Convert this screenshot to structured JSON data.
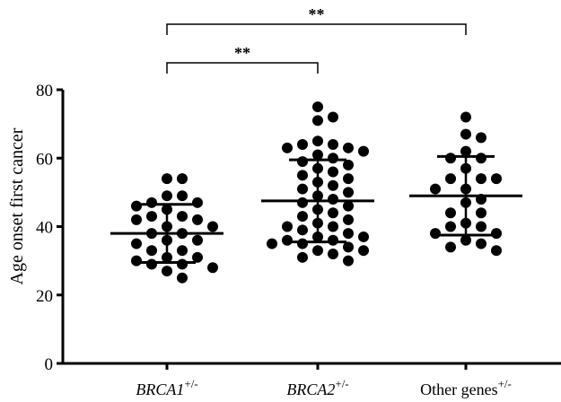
{
  "chart_data": {
    "type": "scatter",
    "title": "",
    "xlabel": "",
    "ylabel": "Age onset first cancer",
    "ylim": [
      0,
      80
    ],
    "yticks": [
      "0",
      "20",
      "40",
      "60",
      "80"
    ],
    "grid": false,
    "legend": "none",
    "point_color": "#000000",
    "categories": [
      {
        "base": "BRCA1",
        "sup": "+/-",
        "italic": true
      },
      {
        "base": "BRCA2",
        "sup": "+/-",
        "italic": true
      },
      {
        "base": "Other genes",
        "sup": "+/-",
        "italic": false
      }
    ],
    "groups": [
      {
        "mean": 38,
        "sd_low": 29.5,
        "sd_high": 46.5,
        "values": [
          54,
          54,
          49,
          49,
          47,
          47,
          46,
          45,
          43,
          43,
          42,
          42,
          40,
          40,
          38,
          38,
          36,
          36,
          35,
          33,
          33,
          31,
          31,
          30,
          29,
          29,
          28,
          27,
          25
        ]
      },
      {
        "mean": 47.5,
        "sd_low": 35.5,
        "sd_high": 59.5,
        "values": [
          75,
          72,
          71,
          65,
          64,
          64,
          63,
          63,
          62,
          61,
          60,
          59,
          58,
          57,
          56,
          55,
          54,
          53,
          52,
          51,
          50,
          49,
          48,
          47,
          46,
          45,
          44,
          43,
          42,
          41,
          40,
          40,
          39,
          38,
          37,
          37,
          36,
          36,
          35,
          35,
          34,
          33,
          33,
          32,
          31,
          30
        ]
      },
      {
        "mean": 49,
        "sd_low": 37.5,
        "sd_high": 60.5,
        "values": [
          72,
          67,
          66,
          62,
          60,
          60,
          57,
          54,
          54,
          54,
          51,
          51,
          48,
          47,
          44,
          44,
          41,
          40,
          40,
          38,
          38,
          36,
          35,
          34,
          33
        ]
      }
    ],
    "annotations": [
      {
        "from": 0,
        "to": 1,
        "label": "**"
      },
      {
        "from": 0,
        "to": 2,
        "label": "**"
      }
    ]
  }
}
